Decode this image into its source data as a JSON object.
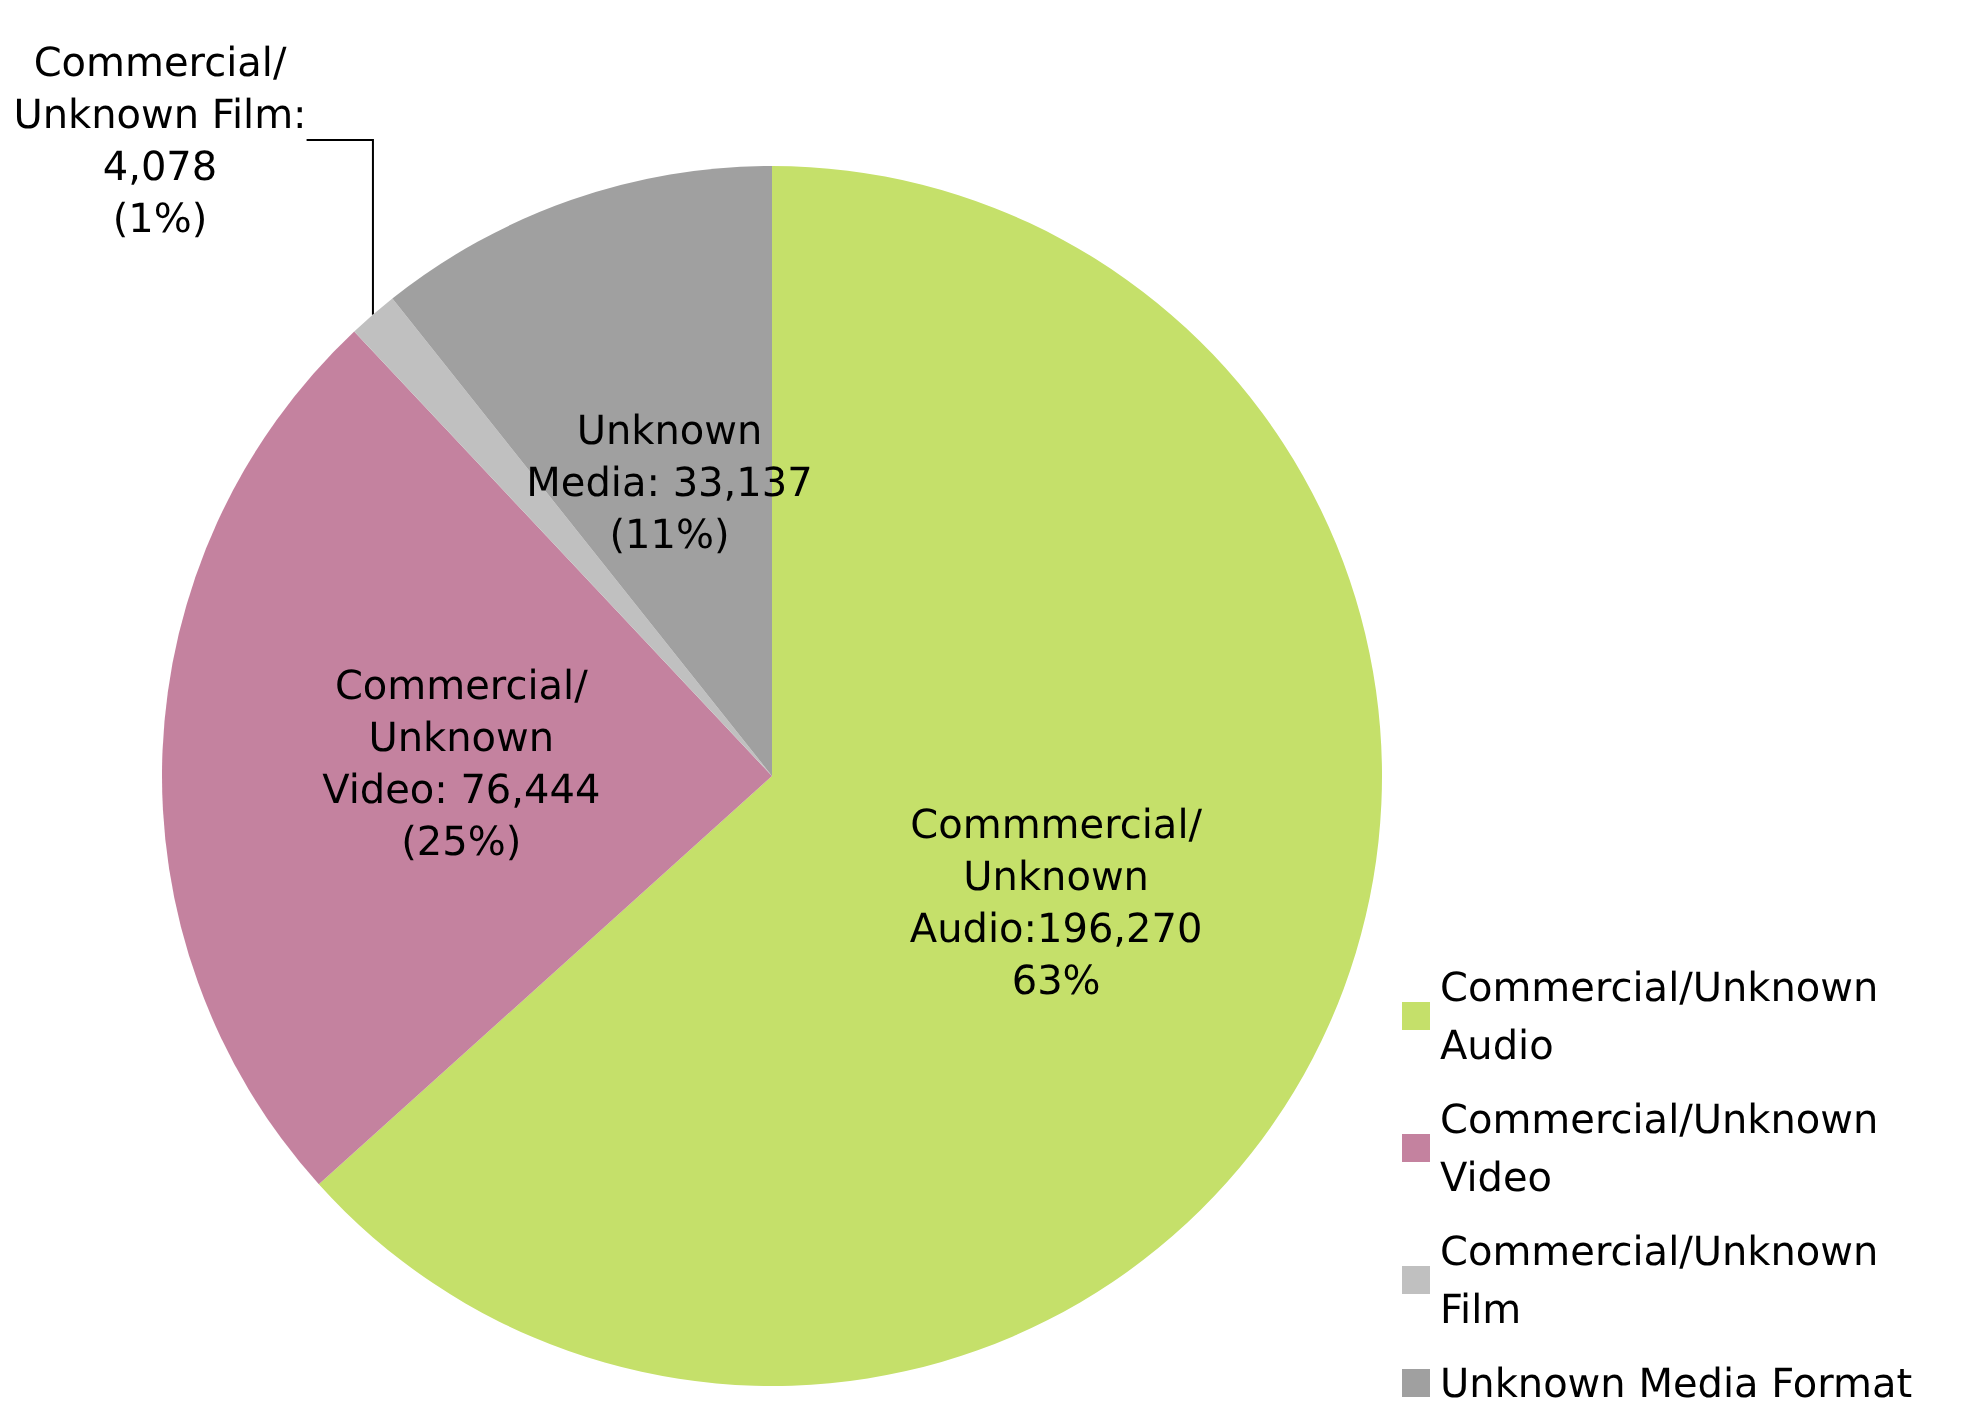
{
  "chart_data": {
    "type": "pie",
    "categories": [
      "Commercial/Unknown Audio",
      "Commercial/Unknown Video",
      "Commercial/Unknown Film",
      "Unknown Media Format"
    ],
    "values": [
      196270,
      76444,
      4078,
      33137
    ],
    "colors": [
      "#c5e06a",
      "#c4829f",
      "#c0c0c0",
      "#a0a0a0"
    ],
    "value_labels": [
      "Commmercial/\nUnknown\nAudio:196,270\n63%",
      "Commercial/\nUnknown\nVideo: 76,444\n(25%)",
      "Commercial/\nUnknown Film:\n4,078\n(1%)",
      "Unknown\nMedia: 33,137\n(11%)"
    ],
    "legend": "bottom right"
  }
}
